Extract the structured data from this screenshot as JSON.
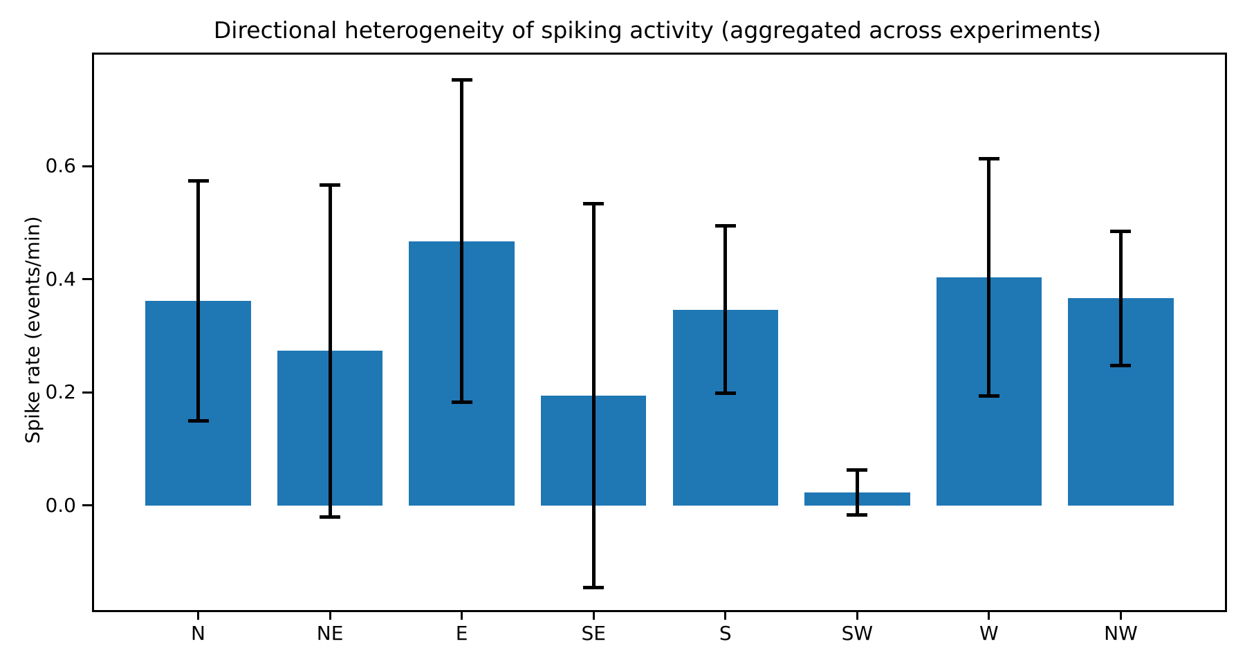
{
  "figure": {
    "background": "#ffffff"
  },
  "chart_data": {
    "type": "bar",
    "title": "Directional heterogeneity of spiking activity (aggregated across experiments)",
    "xlabel": "",
    "ylabel": "Spike rate (events/min)",
    "categories": [
      "N",
      "NE",
      "E",
      "SE",
      "S",
      "SW",
      "W",
      "NW"
    ],
    "values": [
      0.362,
      0.273,
      0.467,
      0.194,
      0.346,
      0.023,
      0.403,
      0.366
    ],
    "errors": [
      0.212,
      0.293,
      0.285,
      0.339,
      0.148,
      0.04,
      0.21,
      0.119
    ],
    "error_style": "symmetric, capped whiskers",
    "bar_color": "#1f77b4",
    "error_color": "#000000",
    "ylim": [
      -0.185,
      0.797
    ],
    "xlim": [
      -0.79,
      7.79
    ],
    "bar_width": 0.8,
    "yticks": [
      0.0,
      0.2,
      0.4,
      0.6
    ],
    "ytick_labels": [
      "0.0",
      "0.2",
      "0.4",
      "0.6"
    ],
    "grid": false,
    "legend": "none"
  }
}
